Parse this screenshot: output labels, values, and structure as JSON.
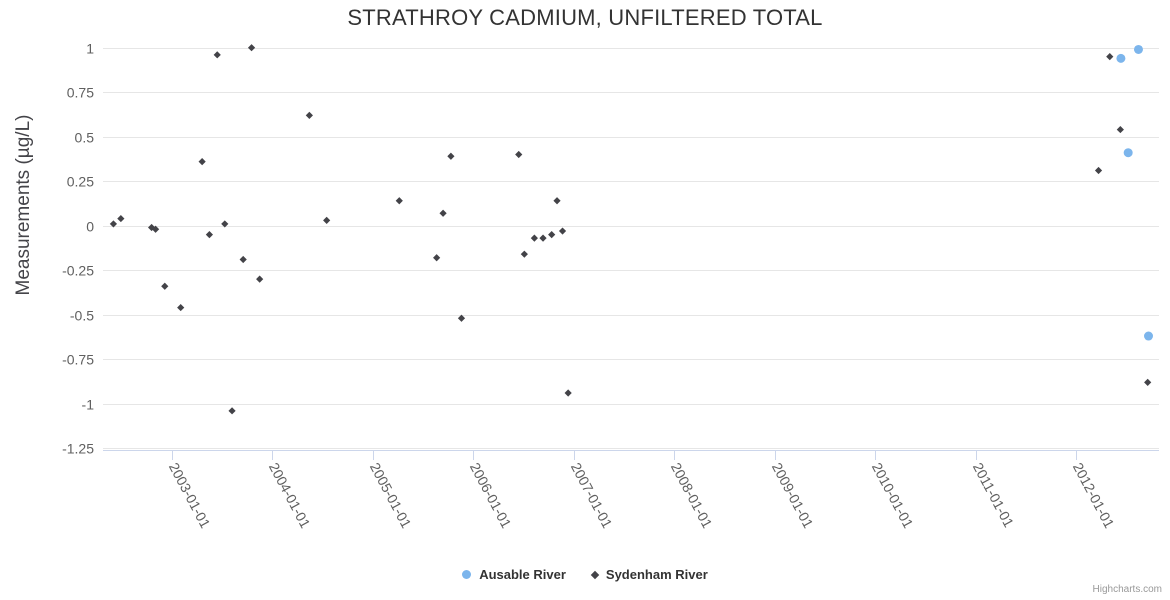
{
  "chart": {
    "credits_label": "Highcharts.com"
  },
  "colors": {
    "title": "#333333",
    "axis_title": "#444449",
    "tick_label": "#606060",
    "gridline": "#e6e6e6",
    "axis_line": "#ccd6eb",
    "background": "#ffffff",
    "ausable": "#7cb5ec",
    "sydenham": "#434348"
  },
  "chart_data": {
    "type": "scatter",
    "title": "STRATHROY CADMIUM, UNFILTERED TOTAL",
    "xlabel": "",
    "ylabel": "Measurements (µg/L)",
    "ylim": [
      -1.26,
      1.05
    ],
    "y_ticks": [
      1,
      0.75,
      0.5,
      0.25,
      0,
      -0.25,
      -0.5,
      -0.75,
      -1,
      -1.25
    ],
    "x_ticks": [
      "2003-01-01",
      "2004-01-01",
      "2005-01-01",
      "2006-01-01",
      "2007-01-01",
      "2008-01-01",
      "2009-01-01",
      "2010-01-01",
      "2011-01-01",
      "2012-01-01"
    ],
    "x_range": [
      "2002-04-15",
      "2012-11-01"
    ],
    "grid": "horizontal-only",
    "legend_position": "bottom-center",
    "series": [
      {
        "name": "Ausable River",
        "color": "#7cb5ec",
        "marker": "circle",
        "points": [
          [
            "2012-06-12",
            0.94
          ],
          [
            "2012-07-08",
            0.41
          ],
          [
            "2012-08-15",
            0.99
          ],
          [
            "2012-09-21",
            -0.62
          ]
        ]
      },
      {
        "name": "Sydenham River",
        "color": "#434348",
        "marker": "diamond",
        "points": [
          [
            "2002-06-03",
            0.01
          ],
          [
            "2002-06-30",
            0.04
          ],
          [
            "2002-10-20",
            -0.01
          ],
          [
            "2002-11-04",
            -0.02
          ],
          [
            "2002-12-07",
            -0.34
          ],
          [
            "2003-02-04",
            -0.46
          ],
          [
            "2003-04-21",
            0.36
          ],
          [
            "2003-05-17",
            -0.05
          ],
          [
            "2003-06-15",
            0.96
          ],
          [
            "2003-07-12",
            0.01
          ],
          [
            "2003-08-08",
            -1.04
          ],
          [
            "2003-09-18",
            -0.19
          ],
          [
            "2003-10-18",
            1.0
          ],
          [
            "2003-11-17",
            -0.3
          ],
          [
            "2004-05-15",
            0.62
          ],
          [
            "2004-07-17",
            0.03
          ],
          [
            "2005-04-07",
            0.14
          ],
          [
            "2005-08-21",
            -0.18
          ],
          [
            "2005-09-14",
            0.07
          ],
          [
            "2005-10-12",
            0.39
          ],
          [
            "2005-11-20",
            -0.52
          ],
          [
            "2006-06-15",
            0.4
          ],
          [
            "2006-07-05",
            -0.16
          ],
          [
            "2006-08-11",
            -0.07
          ],
          [
            "2006-09-12",
            -0.07
          ],
          [
            "2006-10-13",
            -0.05
          ],
          [
            "2006-11-02",
            0.14
          ],
          [
            "2006-11-22",
            -0.03
          ],
          [
            "2006-12-12",
            -0.94
          ],
          [
            "2012-03-22",
            0.31
          ],
          [
            "2012-05-02",
            0.95
          ],
          [
            "2012-06-10",
            0.54
          ],
          [
            "2012-09-18",
            -0.88
          ]
        ]
      }
    ]
  }
}
